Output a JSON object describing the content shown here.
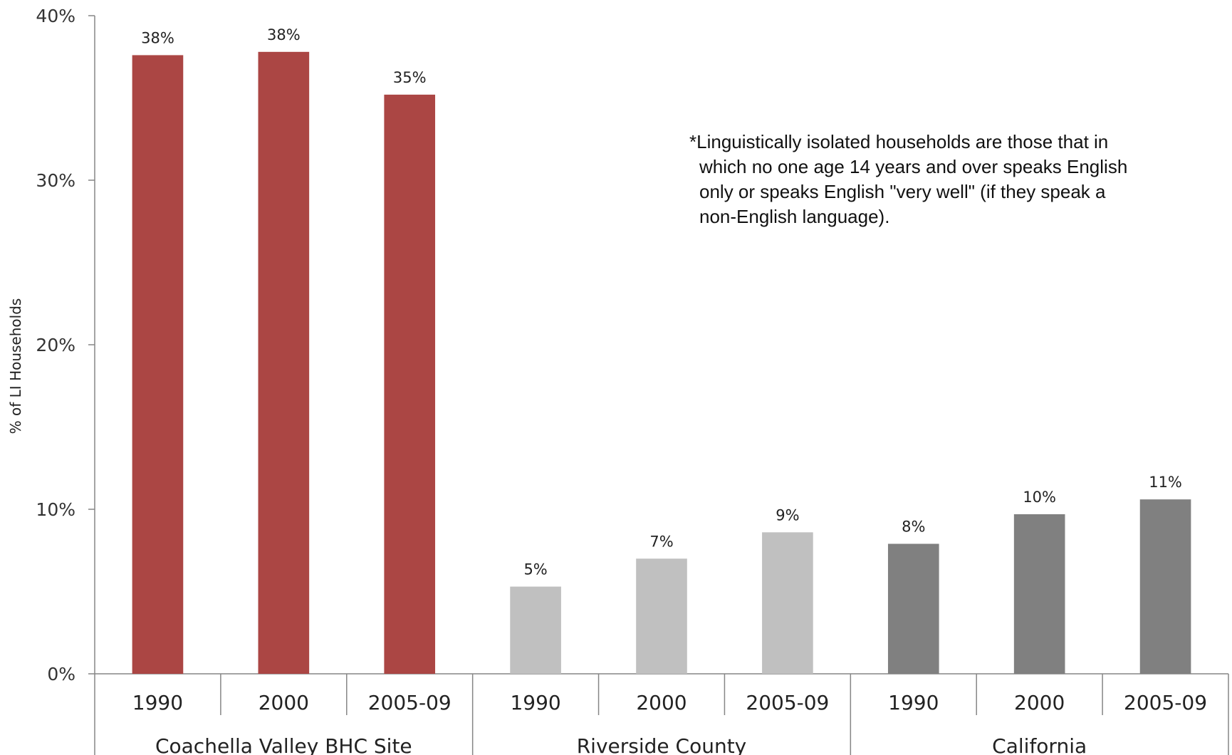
{
  "chart_data": {
    "type": "bar",
    "ylabel": "% of LI Households",
    "ylim": [
      0,
      40
    ],
    "yticks": [
      "0%",
      "10%",
      "20%",
      "30%",
      "40%"
    ],
    "grid": false,
    "legend": "none",
    "groups": [
      {
        "name": "Coachella Valley BHC Site",
        "color": "#AB4644",
        "categories": [
          "1990",
          "2000",
          "2005-09"
        ],
        "values": [
          37.6,
          37.8,
          35.2
        ],
        "labels": [
          "38%",
          "38%",
          "35%"
        ]
      },
      {
        "name": "Riverside County",
        "color": "#C0C0C0",
        "categories": [
          "1990",
          "2000",
          "2005-09"
        ],
        "values": [
          5.3,
          7.0,
          8.6
        ],
        "labels": [
          "5%",
          "7%",
          "9%"
        ]
      },
      {
        "name": "California",
        "color": "#808080",
        "categories": [
          "1990",
          "2000",
          "2005-09"
        ],
        "values": [
          7.9,
          9.7,
          10.6
        ],
        "labels": [
          "8%",
          "10%",
          "11%"
        ]
      }
    ],
    "annotation": [
      "*Linguistically isolated households are those that in",
      "which no one age 14 years and over speaks English",
      "only or speaks English \"very well\" (if they speak a",
      "non-English language)."
    ]
  }
}
